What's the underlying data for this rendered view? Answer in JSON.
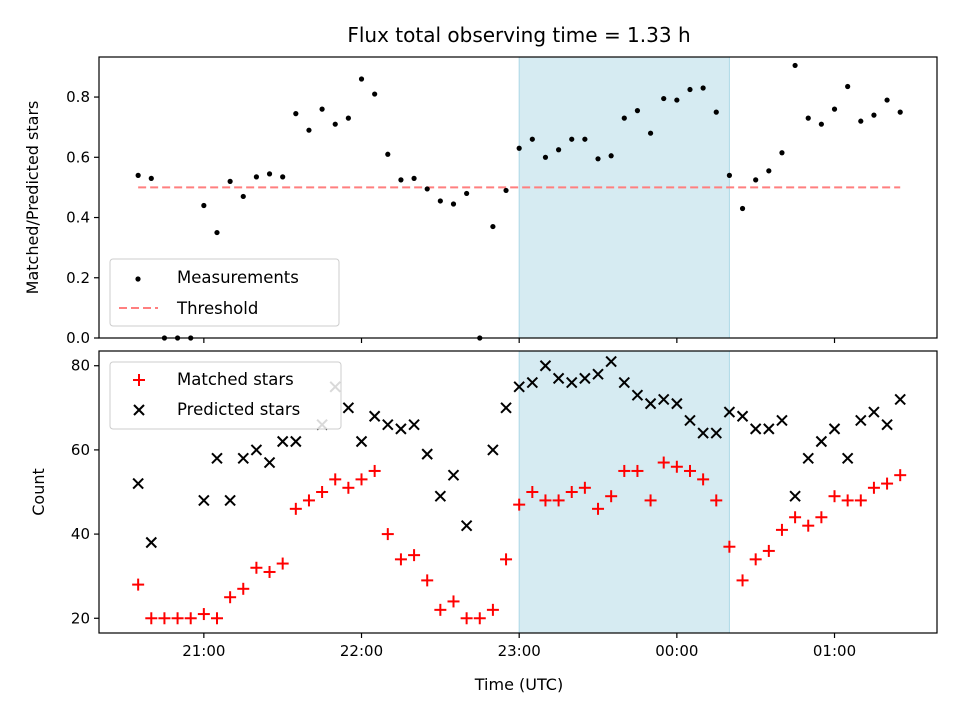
{
  "chart_data": [
    {
      "type": "scatter",
      "title": "Flux total observing time = 1.33 h",
      "xlabel": "",
      "ylabel": "Matched/Predicted stars",
      "ylim": [
        0,
        0.933
      ],
      "yticks": [
        "0.0",
        "0.2",
        "0.4",
        "0.6",
        "0.8"
      ],
      "highlight_span": {
        "start": "23:00",
        "end": "00:20",
        "color": "#add8e6"
      },
      "legend": {
        "placement": "lower-left",
        "entries": [
          "Measurements",
          "Threshold"
        ]
      },
      "threshold": {
        "name": "Threshold",
        "value": 0.5,
        "x_start": "20:35",
        "x_end": "01:25",
        "color": "#ff7f7f"
      },
      "series": [
        {
          "name": "Measurements",
          "color": "#000000",
          "x": [
            "20:35",
            "20:40",
            "20:45",
            "20:50",
            "20:55",
            "21:00",
            "21:05",
            "21:10",
            "21:15",
            "21:20",
            "21:25",
            "21:30",
            "21:35",
            "21:40",
            "21:45",
            "21:50",
            "21:55",
            "22:00",
            "22:05",
            "22:10",
            "22:15",
            "22:20",
            "22:25",
            "22:30",
            "22:35",
            "22:40",
            "22:45",
            "22:50",
            "22:55",
            "23:00",
            "23:05",
            "23:10",
            "23:15",
            "23:20",
            "23:25",
            "23:30",
            "23:35",
            "23:40",
            "23:45",
            "23:50",
            "23:55",
            "00:00",
            "00:05",
            "00:10",
            "00:15",
            "00:20",
            "00:25",
            "00:30",
            "00:35",
            "00:40",
            "00:45",
            "00:50",
            "00:55",
            "01:00",
            "01:05",
            "01:10",
            "01:15",
            "01:20",
            "01:25"
          ],
          "y": [
            0.54,
            0.53,
            0.0,
            0.0,
            0.0,
            0.44,
            0.35,
            0.52,
            0.47,
            0.535,
            0.545,
            0.535,
            0.745,
            0.69,
            0.76,
            0.71,
            0.73,
            0.86,
            0.81,
            0.61,
            0.525,
            0.53,
            0.495,
            0.455,
            0.445,
            0.48,
            0.0,
            0.37,
            0.49,
            0.63,
            0.66,
            0.6,
            0.625,
            0.66,
            0.66,
            0.595,
            0.605,
            0.73,
            0.755,
            0.68,
            0.795,
            0.79,
            0.825,
            0.83,
            0.75,
            0.54,
            0.43,
            0.525,
            0.555,
            0.615,
            0.905,
            0.73,
            0.71,
            0.76,
            0.835,
            0.72,
            0.74,
            0.79,
            0.75
          ]
        }
      ]
    },
    {
      "type": "scatter",
      "title": "",
      "xlabel": "Time (UTC)",
      "ylabel": "Count",
      "ylim": [
        16.5,
        83.5
      ],
      "yticks": [
        "20",
        "40",
        "60",
        "80"
      ],
      "xticks": [
        "21:00",
        "22:00",
        "23:00",
        "00:00",
        "01:00"
      ],
      "highlight_span": {
        "start": "23:00",
        "end": "00:20",
        "color": "#add8e6"
      },
      "legend": {
        "placement": "top-left",
        "entries": [
          "Matched stars",
          "Predicted stars"
        ]
      },
      "x": [
        "20:35",
        "20:40",
        "20:45",
        "20:50",
        "20:55",
        "21:00",
        "21:05",
        "21:10",
        "21:15",
        "21:20",
        "21:25",
        "21:30",
        "21:35",
        "21:40",
        "21:45",
        "21:50",
        "21:55",
        "22:00",
        "22:05",
        "22:10",
        "22:15",
        "22:20",
        "22:25",
        "22:30",
        "22:35",
        "22:40",
        "22:45",
        "22:50",
        "22:55",
        "23:00",
        "23:05",
        "23:10",
        "23:15",
        "23:20",
        "23:25",
        "23:30",
        "23:35",
        "23:40",
        "23:45",
        "23:50",
        "23:55",
        "00:00",
        "00:05",
        "00:10",
        "00:15",
        "00:20",
        "00:25",
        "00:30",
        "00:35",
        "00:40",
        "00:45",
        "00:50",
        "00:55",
        "01:00",
        "01:05",
        "01:10",
        "01:15",
        "01:20",
        "01:25"
      ],
      "series": [
        {
          "name": "Matched stars",
          "marker": "plus",
          "color": "#ff0000",
          "values": [
            28,
            20,
            20,
            20,
            20,
            21,
            20,
            25,
            27,
            32,
            31,
            33,
            46,
            48,
            50,
            53,
            51,
            53,
            55,
            40,
            34,
            35,
            29,
            22,
            24,
            20,
            20,
            22,
            34,
            47,
            50,
            48,
            48,
            50,
            51,
            46,
            49,
            55,
            55,
            48,
            57,
            56,
            55,
            53,
            48,
            37,
            29,
            34,
            36,
            41,
            44,
            42,
            44,
            49,
            48,
            48,
            51,
            52,
            54
          ]
        },
        {
          "name": "Predicted stars",
          "marker": "x",
          "color": "#000000",
          "values": [
            52,
            38,
            null,
            null,
            null,
            48,
            58,
            48,
            58,
            60,
            57,
            62,
            62,
            null,
            66,
            75,
            70,
            62,
            68,
            66,
            65,
            66,
            59,
            49,
            54,
            42,
            null,
            60,
            70,
            75,
            76,
            80,
            77,
            76,
            77,
            78,
            81,
            76,
            73,
            71,
            72,
            71,
            67,
            64,
            64,
            69,
            68,
            65,
            65,
            67,
            49,
            58,
            62,
            65,
            58,
            67,
            69,
            66,
            72
          ]
        }
      ]
    }
  ]
}
